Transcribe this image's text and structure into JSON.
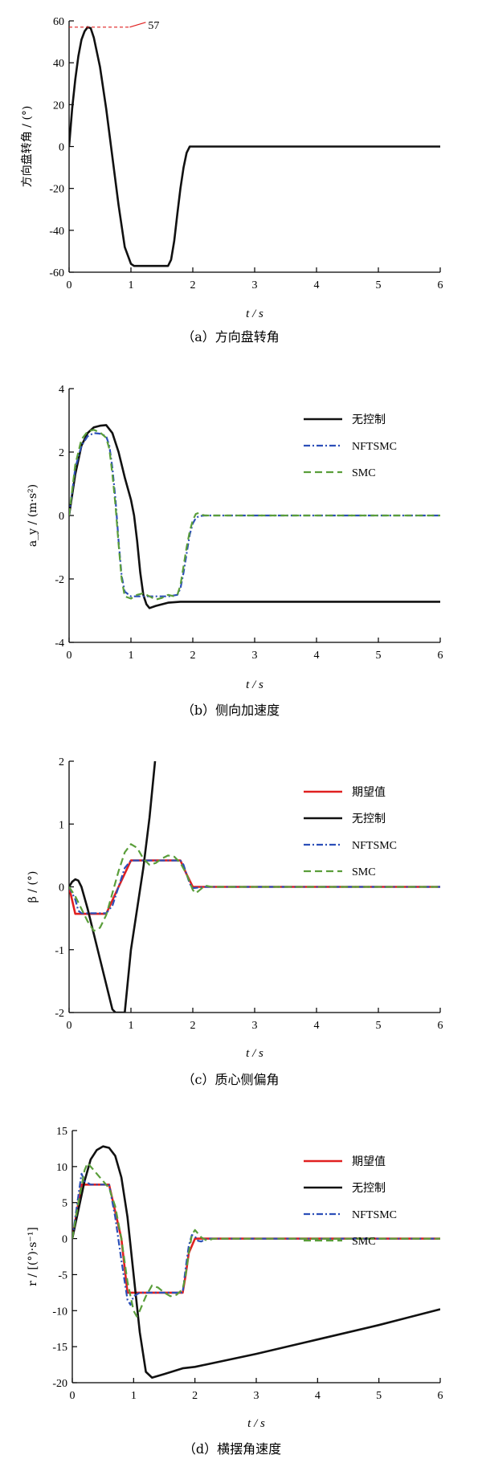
{
  "chart_data": [
    {
      "id": "a",
      "type": "line",
      "caption": "（a）方向盘转角",
      "ylabel": "方向盘转角 / (°)",
      "xlabel": "t / s",
      "xlim": [
        0,
        6
      ],
      "ylim": [
        -60,
        60
      ],
      "xticks": [
        0,
        1,
        2,
        3,
        4,
        5,
        6
      ],
      "yticks": [
        -60,
        -40,
        -20,
        0,
        20,
        40,
        60
      ],
      "annotation": {
        "text": "57",
        "x": 0.33,
        "y": 57
      },
      "series": [
        {
          "color": "#111111",
          "dash": "",
          "x": [
            0,
            0.05,
            0.1,
            0.15,
            0.2,
            0.25,
            0.3,
            0.35,
            0.4,
            0.5,
            0.6,
            0.7,
            0.8,
            0.9,
            1.0,
            1.05,
            1.1,
            1.2,
            1.3,
            1.4,
            1.5,
            1.6,
            1.65,
            1.7,
            1.75,
            1.8,
            1.85,
            1.9,
            1.95,
            2,
            3,
            4,
            5,
            6
          ],
          "y": [
            0,
            18,
            32,
            43,
            51,
            55,
            57,
            56.5,
            52,
            38,
            18,
            -5,
            -28,
            -48,
            -56,
            -57,
            -57,
            -57,
            -57,
            -57,
            -57,
            -57,
            -54,
            -45,
            -32,
            -20,
            -10,
            -3,
            0,
            0,
            0,
            0,
            0,
            0
          ]
        }
      ]
    },
    {
      "id": "b",
      "type": "line",
      "caption": "（b）侧向加速度",
      "ylabel": "a_y / (m·s²)",
      "xlabel": "t / s",
      "xlim": [
        0,
        6
      ],
      "ylim": [
        -4,
        4
      ],
      "xticks": [
        0,
        1,
        2,
        3,
        4,
        5,
        6
      ],
      "yticks": [
        -4,
        -2,
        0,
        2,
        4
      ],
      "legend": {
        "position": "top-right"
      },
      "series": [
        {
          "name": "无控制",
          "color": "#111111",
          "dash": "",
          "x": [
            0,
            0.1,
            0.2,
            0.3,
            0.4,
            0.5,
            0.6,
            0.7,
            0.8,
            0.9,
            1.0,
            1.05,
            1.1,
            1.15,
            1.2,
            1.25,
            1.3,
            1.4,
            1.6,
            1.8,
            2,
            3,
            4,
            5,
            6
          ],
          "y": [
            0,
            1.3,
            2.2,
            2.6,
            2.78,
            2.83,
            2.85,
            2.6,
            2.0,
            1.2,
            0.5,
            0.0,
            -0.8,
            -1.8,
            -2.5,
            -2.8,
            -2.92,
            -2.85,
            -2.75,
            -2.72,
            -2.72,
            -2.72,
            -2.72,
            -2.72,
            -2.72
          ]
        },
        {
          "name": "NFTSMC",
          "color": "#2c4fb8",
          "dash": "8,3,2,3",
          "x": [
            0,
            0.1,
            0.2,
            0.3,
            0.4,
            0.5,
            0.6,
            0.65,
            0.7,
            0.75,
            0.8,
            0.85,
            0.9,
            1.0,
            1.2,
            1.4,
            1.6,
            1.75,
            1.8,
            1.85,
            1.9,
            1.95,
            2.0,
            2.05,
            2.1,
            2.2,
            3,
            4,
            5,
            6
          ],
          "y": [
            0,
            1.5,
            2.2,
            2.5,
            2.6,
            2.58,
            2.5,
            2.2,
            1.5,
            0.5,
            -0.8,
            -1.9,
            -2.4,
            -2.55,
            -2.55,
            -2.55,
            -2.55,
            -2.5,
            -2.3,
            -1.8,
            -1.2,
            -0.6,
            -0.25,
            -0.08,
            -0.02,
            0,
            0,
            0,
            0,
            0
          ]
        },
        {
          "name": "SMC",
          "color": "#5a9e3a",
          "dash": "9,5",
          "x": [
            0,
            0.1,
            0.2,
            0.3,
            0.4,
            0.5,
            0.6,
            0.65,
            0.7,
            0.75,
            0.8,
            0.85,
            0.9,
            1.0,
            1.1,
            1.2,
            1.3,
            1.4,
            1.5,
            1.6,
            1.7,
            1.75,
            1.8,
            1.85,
            1.9,
            1.95,
            2.0,
            2.05,
            2.1,
            2.15,
            2.2,
            3,
            4,
            5,
            6
          ],
          "y": [
            0,
            1.6,
            2.4,
            2.65,
            2.7,
            2.62,
            2.45,
            2.1,
            1.3,
            0.3,
            -0.9,
            -2.0,
            -2.55,
            -2.62,
            -2.5,
            -2.45,
            -2.55,
            -2.65,
            -2.6,
            -2.5,
            -2.55,
            -2.5,
            -2.2,
            -1.6,
            -1.0,
            -0.5,
            -0.15,
            0.05,
            0.08,
            0.02,
            0,
            0,
            0,
            0,
            0
          ]
        }
      ]
    },
    {
      "id": "c",
      "type": "line",
      "caption": "（c）质心侧偏角",
      "ylabel": "β / (°)",
      "xlabel": "t / s",
      "xlim": [
        0,
        6
      ],
      "ylim": [
        -2,
        2
      ],
      "xticks": [
        0,
        1,
        2,
        3,
        4,
        5,
        6
      ],
      "yticks": [
        -2,
        -1,
        0,
        1,
        2
      ],
      "legend": {
        "position": "top-right"
      },
      "series": [
        {
          "name": "期望值",
          "color": "#e02020",
          "dash": "",
          "x": [
            0,
            0.1,
            0.6,
            0.8,
            1.0,
            1.8,
            1.9,
            2.0,
            6
          ],
          "y": [
            0,
            -0.43,
            -0.43,
            0.0,
            0.42,
            0.42,
            0.2,
            0,
            0
          ]
        },
        {
          "name": "无控制",
          "color": "#111111",
          "dash": "",
          "x": [
            0,
            0.05,
            0.1,
            0.15,
            0.2,
            0.3,
            0.4,
            0.5,
            0.6,
            0.7,
            0.75,
            0.8,
            0.9,
            1.0,
            1.2,
            1.3,
            1.39
          ],
          "y": [
            0,
            0.08,
            0.12,
            0.1,
            0.0,
            -0.35,
            -0.75,
            -1.15,
            -1.55,
            -1.95,
            -2.0,
            -2.0,
            -2.0,
            -1.0,
            0.3,
            1.1,
            2.0
          ]
        },
        {
          "name": "NFTSMC",
          "color": "#2c4fb8",
          "dash": "8,3,2,3",
          "x": [
            0,
            0.1,
            0.15,
            0.2,
            0.6,
            0.7,
            0.8,
            0.9,
            1.0,
            1.8,
            1.85,
            1.9,
            1.95,
            2.0,
            2.1,
            2.2,
            6
          ],
          "y": [
            0,
            -0.2,
            -0.38,
            -0.42,
            -0.42,
            -0.3,
            0.0,
            0.3,
            0.42,
            0.42,
            0.35,
            0.2,
            0.05,
            -0.02,
            -0.01,
            0,
            0
          ]
        },
        {
          "name": "SMC",
          "color": "#5a9e3a",
          "dash": "9,5",
          "x": [
            0,
            0.1,
            0.2,
            0.3,
            0.4,
            0.5,
            0.6,
            0.7,
            0.8,
            0.9,
            1.0,
            1.1,
            1.2,
            1.3,
            1.4,
            1.5,
            1.6,
            1.7,
            1.8,
            1.9,
            2.0,
            2.05,
            2.1,
            2.2,
            2.3,
            2.4,
            6
          ],
          "y": [
            0,
            -0.15,
            -0.35,
            -0.55,
            -0.7,
            -0.65,
            -0.45,
            -0.1,
            0.25,
            0.55,
            0.68,
            0.62,
            0.45,
            0.35,
            0.38,
            0.45,
            0.5,
            0.48,
            0.38,
            0.2,
            -0.05,
            -0.1,
            -0.06,
            0.02,
            0,
            0,
            0
          ]
        }
      ]
    },
    {
      "id": "d",
      "type": "line",
      "caption": "（d）横摆角速度",
      "ylabel": "r / [(°)·s⁻¹]",
      "xlabel": "t / s",
      "xlim": [
        0,
        6
      ],
      "ylim": [
        -20,
        15
      ],
      "xticks": [
        0,
        1,
        2,
        3,
        4,
        5,
        6
      ],
      "yticks": [
        -20,
        -15,
        -10,
        -5,
        0,
        5,
        10,
        15
      ],
      "legend": {
        "position": "top-right"
      },
      "series": [
        {
          "name": "期望值",
          "color": "#e02020",
          "dash": "",
          "x": [
            0,
            0.1,
            0.15,
            0.6,
            0.8,
            0.9,
            1.8,
            1.85,
            1.9,
            2.0,
            2.05,
            6
          ],
          "y": [
            0,
            5,
            7.5,
            7.5,
            0,
            -7.5,
            -7.5,
            -5,
            -2,
            0,
            0,
            0
          ]
        },
        {
          "name": "无控制",
          "color": "#111111",
          "dash": "",
          "x": [
            0,
            0.1,
            0.2,
            0.3,
            0.4,
            0.5,
            0.6,
            0.7,
            0.8,
            0.9,
            1.0,
            1.1,
            1.2,
            1.3,
            1.5,
            1.8,
            2,
            3,
            4,
            5,
            6
          ],
          "y": [
            0,
            4,
            8,
            11,
            12.3,
            12.8,
            12.6,
            11.5,
            8.5,
            3,
            -5,
            -13,
            -18.5,
            -19.3,
            -18.8,
            -18,
            -17.8,
            -16,
            -14,
            -12,
            -9.8
          ]
        },
        {
          "name": "NFTSMC",
          "color": "#2c4fb8",
          "dash": "8,3,2,3",
          "x": [
            0,
            0.1,
            0.15,
            0.2,
            0.3,
            0.6,
            0.7,
            0.8,
            0.9,
            0.95,
            1.0,
            1.1,
            1.8,
            1.85,
            1.9,
            1.95,
            2.0,
            2.05,
            2.1,
            2.2,
            6
          ],
          "y": [
            0,
            6,
            9,
            8,
            7.5,
            7.5,
            3,
            -3,
            -8.5,
            -9.2,
            -8,
            -7.5,
            -7.5,
            -4,
            -1,
            0.5,
            0.3,
            -0.3,
            -0.4,
            0,
            0
          ]
        },
        {
          "name": "SMC",
          "color": "#5a9e3a",
          "dash": "9,5",
          "x": [
            0,
            0.1,
            0.2,
            0.25,
            0.3,
            0.4,
            0.5,
            0.6,
            0.7,
            0.8,
            0.9,
            1.0,
            1.05,
            1.1,
            1.2,
            1.3,
            1.4,
            1.5,
            1.6,
            1.7,
            1.8,
            1.85,
            1.9,
            1.95,
            2.0,
            2.1,
            2.2,
            2.3,
            6
          ],
          "y": [
            0,
            5,
            9.5,
            10.5,
            10,
            9,
            8,
            7,
            4.5,
            0,
            -6,
            -10,
            -10.8,
            -10,
            -8,
            -6.5,
            -6.8,
            -7.5,
            -8,
            -7.8,
            -7,
            -5,
            -2,
            0.5,
            1.2,
            0.2,
            -0.3,
            0,
            0
          ]
        }
      ]
    }
  ]
}
